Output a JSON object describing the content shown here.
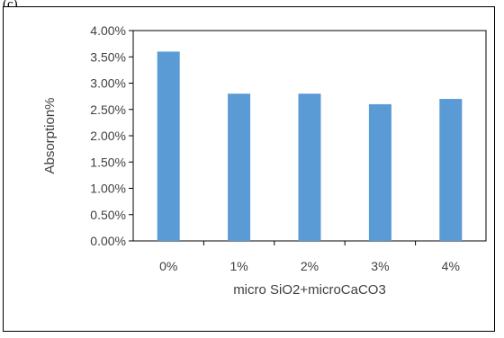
{
  "figure_label": "(c)",
  "chart_data": {
    "type": "bar",
    "title": "",
    "xlabel": "micro SiO2+microCaCO3",
    "ylabel": "Absorption%",
    "categories": [
      "0%",
      "1%",
      "2%",
      "3%",
      "4%"
    ],
    "values": [
      3.6,
      2.8,
      2.8,
      2.6,
      2.7
    ],
    "value_unit": "%",
    "ylim": [
      0,
      4.0
    ],
    "yticks": [
      "0.00%",
      "0.50%",
      "1.00%",
      "1.50%",
      "2.00%",
      "2.50%",
      "3.00%",
      "3.50%",
      "4.00%"
    ],
    "grid": false,
    "legend": "none",
    "bar_color": "#5b9bd5",
    "axis_color": "#000000",
    "text_color": "#404040"
  }
}
